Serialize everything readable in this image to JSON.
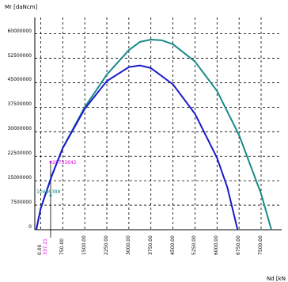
{
  "chart_data": {
    "type": "line",
    "ylabel": "Mr [daNcm]",
    "xlabel": "Nd [kN",
    "xlim": [
      -200,
      8200
    ],
    "ylim": [
      0,
      65000000
    ],
    "x_ticks": [
      "0.00",
      "750.00",
      "1500.00",
      "2250.00",
      "3000.00",
      "3750.00",
      "4500.00",
      "5250.00",
      "6000.00",
      "6750.00",
      "7500.00"
    ],
    "x_tick_values": [
      0,
      750,
      1500,
      2250,
      3000,
      3750,
      4500,
      5250,
      6000,
      6750,
      7500
    ],
    "y_ticks": [
      "0",
      "7500000",
      "15000000",
      "22500000",
      "30000000",
      "37500000",
      "45000000",
      "52500000",
      "60000000"
    ],
    "y_tick_values": [
      0,
      7500000,
      15000000,
      22500000,
      30000000,
      37500000,
      45000000,
      52500000,
      60000000
    ],
    "grid": true,
    "series": [
      {
        "color": "#1a8a8a",
        "points": [
          [
            -150,
            0
          ],
          [
            0,
            6500000
          ],
          [
            375,
            16500000
          ],
          [
            750,
            25000000
          ],
          [
            1500,
            37500000
          ],
          [
            2250,
            47500000
          ],
          [
            3000,
            55000000
          ],
          [
            3375,
            57500000
          ],
          [
            3750,
            58200000
          ],
          [
            4125,
            58000000
          ],
          [
            4500,
            56800000
          ],
          [
            5250,
            51500000
          ],
          [
            6000,
            42500000
          ],
          [
            6750,
            29000000
          ],
          [
            7500,
            11000000
          ],
          [
            7850,
            0
          ]
        ]
      },
      {
        "color": "#1a1acc",
        "points": [
          [
            -150,
            0
          ],
          [
            0,
            6500000
          ],
          [
            375,
            16500000
          ],
          [
            750,
            25000000
          ],
          [
            1125,
            31000000
          ],
          [
            1500,
            37000000
          ],
          [
            2250,
            45500000
          ],
          [
            3000,
            49800000
          ],
          [
            3375,
            50300000
          ],
          [
            3750,
            49500000
          ],
          [
            4500,
            44500000
          ],
          [
            5250,
            35500000
          ],
          [
            6000,
            22000000
          ],
          [
            6350,
            13000000
          ],
          [
            6700,
            0
          ]
        ]
      }
    ],
    "annotations": [
      {
        "text": "20733642",
        "color": "#e000e0"
      },
      {
        "text": "10486388",
        "color": "#1a8a8a"
      },
      {
        "text": "337.21",
        "color": "#e000e0"
      }
    ],
    "marker_x": 337.21,
    "marker_y_high": 20733642,
    "marker_y_low": 10486388
  }
}
